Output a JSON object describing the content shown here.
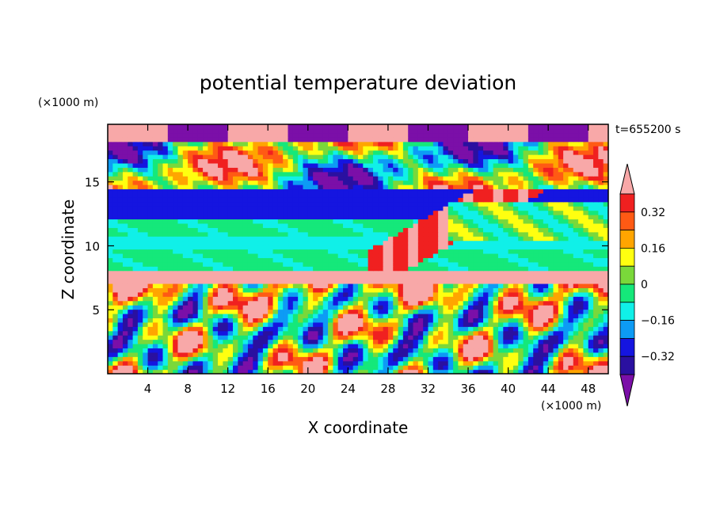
{
  "chart_data": {
    "type": "heatmap",
    "title": "potential temperature deviation",
    "xlabel": "X coordinate",
    "ylabel": "Z coordinate",
    "x_unit": "(×1000 m)",
    "y_unit": "(×1000 m)",
    "time_label": "t=655200 s",
    "xlim": [
      0,
      50
    ],
    "ylim": [
      0,
      19.5
    ],
    "x_ticks": [
      4,
      8,
      12,
      16,
      20,
      24,
      28,
      32,
      36,
      40,
      44,
      48
    ],
    "y_ticks": [
      5,
      10,
      15
    ],
    "colorbar": {
      "levels": [
        -0.4,
        -0.32,
        -0.24,
        -0.16,
        -0.08,
        0,
        0.08,
        0.16,
        0.24,
        0.32,
        0.4
      ],
      "tick_labels": [
        "0.32",
        "0.16",
        "0",
        "−0.16",
        "−0.32"
      ],
      "tick_values": [
        0.32,
        0.16,
        0,
        -0.16,
        -0.32
      ],
      "colors": [
        "#7b0fa8",
        "#2a10a0",
        "#1515e0",
        "#0d9bf5",
        "#10f0e8",
        "#15e87a",
        "#7ad83a",
        "#ffff10",
        "#ffa500",
        "#ff5a14",
        "#f02020",
        "#f8a8a8"
      ],
      "extend": "both"
    },
    "field_description_bands": [
      {
        "z_range": [
          0,
          7
        ],
        "value": "mixed, strong positive and negative eddies"
      },
      {
        "z_range": [
          7,
          8
        ],
        "value": 0.4
      },
      {
        "z_range": [
          8,
          14.5
        ],
        "value": -0.08
      },
      {
        "z_range": [
          14.5,
          19.5
        ],
        "value": "mixed, banded positive/negative"
      }
    ]
  },
  "colors": {
    "frame": "#000000",
    "background": "#ffffff"
  }
}
